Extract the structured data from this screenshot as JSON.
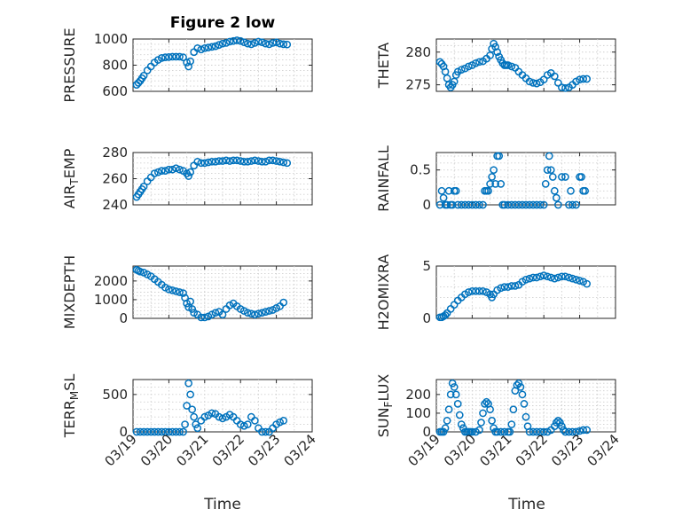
{
  "figure": {
    "title": "Figure 2 low",
    "date_ticks": [
      "03/19",
      "03/20",
      "03/21",
      "03/22",
      "03/23",
      "03/24"
    ],
    "xlabel": "Time"
  },
  "colors": {
    "marker": "#0072BD",
    "axis": "#262626",
    "grid": "#cfcfcf"
  },
  "chart_data": [
    {
      "type": "scatter",
      "name": "PRESSURE",
      "ylabel": "PRESSURE",
      "title": "Figure 2 low",
      "xlim": [
        "03/19",
        "03/24"
      ],
      "ylim": [
        600,
        1000
      ],
      "yticks": [
        600,
        800,
        1000
      ],
      "ytick_labels": [
        "600",
        "800",
        "1000"
      ],
      "xticks": [],
      "grid": true,
      "x": [
        0.1,
        0.15,
        0.2,
        0.25,
        0.3,
        0.4,
        0.5,
        0.6,
        0.7,
        0.8,
        0.9,
        1.0,
        1.1,
        1.2,
        1.3,
        1.4,
        1.5,
        1.55,
        1.6,
        1.7,
        1.8,
        1.9,
        2.0,
        2.1,
        2.2,
        2.3,
        2.4,
        2.5,
        2.6,
        2.7,
        2.8,
        2.9,
        3.0,
        3.1,
        3.2,
        3.3,
        3.4,
        3.5,
        3.6,
        3.7,
        3.8,
        3.9,
        4.0,
        4.1,
        4.2,
        4.3
      ],
      "y": [
        650,
        665,
        680,
        700,
        720,
        760,
        790,
        820,
        840,
        855,
        860,
        862,
        865,
        865,
        865,
        860,
        820,
        790,
        830,
        900,
        930,
        920,
        930,
        935,
        940,
        945,
        955,
        965,
        970,
        980,
        985,
        990,
        985,
        975,
        965,
        960,
        970,
        980,
        975,
        965,
        960,
        970,
        975,
        965,
        960,
        958
      ]
    },
    {
      "type": "scatter",
      "name": "THETA",
      "ylabel": "THETA",
      "xlim": [
        "03/19",
        "03/24"
      ],
      "ylim": [
        274,
        282
      ],
      "yticks": [
        275,
        280
      ],
      "ytick_labels": [
        "275",
        "280"
      ],
      "xticks": [],
      "grid": true,
      "x": [
        0.1,
        0.15,
        0.2,
        0.25,
        0.3,
        0.35,
        0.4,
        0.45,
        0.5,
        0.55,
        0.6,
        0.7,
        0.8,
        0.9,
        1.0,
        1.1,
        1.2,
        1.3,
        1.4,
        1.5,
        1.55,
        1.6,
        1.65,
        1.7,
        1.75,
        1.8,
        1.85,
        1.9,
        1.95,
        2.0,
        2.1,
        2.2,
        2.3,
        2.4,
        2.5,
        2.6,
        2.7,
        2.8,
        2.9,
        3.0,
        3.1,
        3.2,
        3.3,
        3.4,
        3.5,
        3.6,
        3.7,
        3.8,
        3.9,
        4.0,
        4.1,
        4.2
      ],
      "y": [
        278.5,
        278.2,
        277.8,
        277.0,
        276.0,
        275.0,
        274.6,
        275.0,
        275.5,
        276.5,
        277.0,
        277.3,
        277.5,
        277.8,
        278.0,
        278.3,
        278.5,
        278.6,
        279.0,
        279.5,
        280.5,
        281.3,
        280.8,
        280.0,
        279.3,
        278.8,
        278.3,
        278.0,
        278.0,
        278.0,
        277.8,
        277.6,
        277.0,
        276.5,
        276.0,
        275.5,
        275.3,
        275.2,
        275.4,
        275.8,
        276.5,
        276.8,
        276.3,
        275.3,
        274.6,
        274.5,
        274.6,
        275.0,
        275.5,
        275.8,
        275.9,
        275.9
      ]
    },
    {
      "type": "scatter",
      "name": "AIR_TEMP",
      "ylabel": "AIR_TEMP",
      "xlim": [
        "03/19",
        "03/24"
      ],
      "ylim": [
        240,
        280
      ],
      "yticks": [
        240,
        260,
        280
      ],
      "ytick_labels": [
        "240",
        "260",
        "280"
      ],
      "xticks": [],
      "grid": true,
      "x": [
        0.1,
        0.15,
        0.2,
        0.25,
        0.3,
        0.4,
        0.5,
        0.6,
        0.7,
        0.8,
        0.9,
        1.0,
        1.1,
        1.2,
        1.3,
        1.4,
        1.5,
        1.55,
        1.6,
        1.7,
        1.8,
        1.9,
        2.0,
        2.1,
        2.2,
        2.3,
        2.4,
        2.5,
        2.6,
        2.7,
        2.8,
        2.9,
        3.0,
        3.1,
        3.2,
        3.3,
        3.4,
        3.5,
        3.6,
        3.7,
        3.8,
        3.9,
        4.0,
        4.1,
        4.2,
        4.3
      ],
      "y": [
        246,
        248,
        250,
        252,
        254,
        258,
        261,
        264,
        265,
        266,
        266,
        267,
        267,
        268,
        267,
        266,
        264,
        262,
        265,
        270,
        273,
        272,
        272,
        272.5,
        273,
        273,
        273.5,
        273.5,
        274,
        273.5,
        274,
        274,
        273.5,
        273,
        273,
        273.5,
        274,
        273.5,
        273,
        273,
        274,
        274,
        273.5,
        273,
        272.5,
        272
      ]
    },
    {
      "type": "scatter",
      "name": "RAINFALL",
      "ylabel": "RAINFALL",
      "xlim": [
        "03/19",
        "03/24"
      ],
      "ylim": [
        0,
        0.75
      ],
      "yticks": [
        0,
        0.5
      ],
      "ytick_labels": [
        "0",
        "0.5"
      ],
      "xticks": [],
      "grid": true,
      "x": [
        0.1,
        0.15,
        0.2,
        0.25,
        0.3,
        0.35,
        0.4,
        0.45,
        0.5,
        0.55,
        0.6,
        0.7,
        0.8,
        0.9,
        1.0,
        1.1,
        1.2,
        1.3,
        1.35,
        1.4,
        1.45,
        1.5,
        1.55,
        1.6,
        1.65,
        1.7,
        1.75,
        1.8,
        1.85,
        1.9,
        2.0,
        2.1,
        2.2,
        2.3,
        2.4,
        2.5,
        2.6,
        2.7,
        2.8,
        2.9,
        3.0,
        3.05,
        3.1,
        3.15,
        3.2,
        3.25,
        3.3,
        3.35,
        3.4,
        3.5,
        3.6,
        3.7,
        3.75,
        3.8,
        3.9,
        4.0,
        4.05,
        4.1,
        4.15
      ],
      "y": [
        0,
        0.2,
        0.1,
        0,
        0,
        0.2,
        0,
        0,
        0.2,
        0.2,
        0,
        0,
        0,
        0,
        0,
        0,
        0,
        0,
        0.2,
        0.2,
        0.2,
        0.3,
        0.4,
        0.5,
        0.3,
        0.7,
        0.7,
        0.3,
        0,
        0,
        0,
        0,
        0,
        0,
        0,
        0,
        0,
        0,
        0,
        0,
        0,
        0.3,
        0.5,
        0.7,
        0.5,
        0.4,
        0.2,
        0.1,
        0,
        0.4,
        0.4,
        0,
        0.2,
        0,
        0,
        0.4,
        0.4,
        0.2,
        0.2
      ]
    },
    {
      "type": "scatter",
      "name": "MIXDEPTH",
      "ylabel": "MIXDEPTH",
      "xlim": [
        "03/19",
        "03/24"
      ],
      "ylim": [
        0,
        2800
      ],
      "yticks": [
        0,
        1000,
        2000
      ],
      "ytick_labels": [
        "0",
        "1000",
        "2000"
      ],
      "xticks": [],
      "grid": true,
      "x": [
        0.1,
        0.15,
        0.2,
        0.3,
        0.4,
        0.5,
        0.6,
        0.7,
        0.8,
        0.9,
        1.0,
        1.1,
        1.2,
        1.3,
        1.4,
        1.45,
        1.5,
        1.55,
        1.6,
        1.65,
        1.7,
        1.8,
        1.9,
        2.0,
        2.1,
        2.2,
        2.3,
        2.4,
        2.5,
        2.6,
        2.7,
        2.8,
        2.9,
        3.0,
        3.1,
        3.2,
        3.3,
        3.4,
        3.5,
        3.6,
        3.7,
        3.8,
        3.9,
        4.0,
        4.1,
        4.2
      ],
      "y": [
        2600,
        2550,
        2500,
        2450,
        2350,
        2250,
        2100,
        1950,
        1800,
        1650,
        1550,
        1500,
        1450,
        1400,
        1350,
        1100,
        800,
        600,
        900,
        500,
        300,
        200,
        50,
        50,
        100,
        200,
        300,
        350,
        200,
        500,
        700,
        800,
        650,
        500,
        400,
        300,
        250,
        200,
        250,
        300,
        350,
        400,
        450,
        550,
        650,
        850
      ]
    },
    {
      "type": "scatter",
      "name": "H2OMIXRA",
      "ylabel": "H2OMIXRA",
      "xlim": [
        "03/19",
        "03/24"
      ],
      "ylim": [
        0,
        5
      ],
      "yticks": [
        0,
        5
      ],
      "ytick_labels": [
        "0",
        "5"
      ],
      "xticks": [],
      "grid": true,
      "x": [
        0.1,
        0.15,
        0.2,
        0.25,
        0.3,
        0.4,
        0.5,
        0.6,
        0.7,
        0.8,
        0.9,
        1.0,
        1.1,
        1.2,
        1.3,
        1.4,
        1.5,
        1.55,
        1.6,
        1.7,
        1.8,
        1.9,
        2.0,
        2.1,
        2.2,
        2.3,
        2.4,
        2.5,
        2.6,
        2.7,
        2.8,
        2.9,
        3.0,
        3.1,
        3.2,
        3.3,
        3.4,
        3.5,
        3.6,
        3.7,
        3.8,
        3.9,
        4.0,
        4.1,
        4.2
      ],
      "y": [
        0.1,
        0.1,
        0.2,
        0.3,
        0.5,
        0.9,
        1.3,
        1.7,
        2.0,
        2.3,
        2.5,
        2.6,
        2.6,
        2.6,
        2.6,
        2.5,
        2.3,
        2.0,
        2.3,
        2.7,
        2.9,
        3.0,
        3.0,
        3.1,
        3.1,
        3.2,
        3.5,
        3.7,
        3.8,
        3.9,
        3.9,
        4.0,
        4.1,
        4.0,
        3.9,
        3.8,
        3.9,
        4.0,
        4.0,
        3.9,
        3.8,
        3.7,
        3.6,
        3.5,
        3.3
      ]
    },
    {
      "type": "scatter",
      "name": "TERR_MSL",
      "ylabel": "TERR_MSL",
      "xlim": [
        "03/19",
        "03/24"
      ],
      "ylim": [
        0,
        700
      ],
      "yticks": [
        0,
        500
      ],
      "ytick_labels": [
        "0",
        "500"
      ],
      "xtick_labels": [
        "03/19",
        "03/20",
        "03/21",
        "03/22",
        "03/23",
        "03/24"
      ],
      "xlabel": "Time",
      "grid": true,
      "x": [
        0.1,
        0.2,
        0.3,
        0.4,
        0.5,
        0.6,
        0.7,
        0.8,
        0.9,
        1.0,
        1.1,
        1.2,
        1.3,
        1.4,
        1.45,
        1.5,
        1.55,
        1.6,
        1.65,
        1.7,
        1.75,
        1.8,
        1.9,
        2.0,
        2.1,
        2.2,
        2.3,
        2.4,
        2.5,
        2.6,
        2.7,
        2.8,
        2.9,
        3.0,
        3.1,
        3.2,
        3.3,
        3.4,
        3.5,
        3.6,
        3.7,
        3.8,
        3.9,
        4.0,
        4.1,
        4.2
      ],
      "y": [
        0,
        0,
        0,
        0,
        0,
        0,
        0,
        0,
        0,
        0,
        0,
        0,
        0,
        0,
        100,
        350,
        650,
        500,
        300,
        200,
        100,
        50,
        150,
        200,
        220,
        250,
        240,
        200,
        180,
        200,
        230,
        200,
        150,
        100,
        80,
        100,
        200,
        150,
        50,
        0,
        0,
        0,
        50,
        100,
        130,
        150
      ]
    },
    {
      "type": "scatter",
      "name": "SUN_FLUX",
      "ylabel": "SUN_FLUX",
      "xlim": [
        "03/19",
        "03/24"
      ],
      "ylim": [
        0,
        280
      ],
      "yticks": [
        0,
        100,
        200
      ],
      "ytick_labels": [
        "0",
        "100",
        "200"
      ],
      "xtick_labels": [
        "03/19",
        "03/20",
        "03/21",
        "03/22",
        "03/23",
        "03/24"
      ],
      "xlabel": "Time",
      "grid": true,
      "x": [
        0.1,
        0.15,
        0.2,
        0.25,
        0.3,
        0.35,
        0.4,
        0.45,
        0.5,
        0.55,
        0.6,
        0.65,
        0.7,
        0.75,
        0.8,
        0.85,
        0.9,
        0.95,
        1.0,
        1.1,
        1.2,
        1.25,
        1.3,
        1.35,
        1.4,
        1.45,
        1.5,
        1.55,
        1.6,
        1.65,
        1.7,
        1.8,
        1.9,
        2.0,
        2.05,
        2.1,
        2.15,
        2.2,
        2.25,
        2.3,
        2.35,
        2.4,
        2.45,
        2.5,
        2.55,
        2.6,
        2.7,
        2.8,
        2.9,
        3.0,
        3.1,
        3.2,
        3.3,
        3.35,
        3.4,
        3.45,
        3.5,
        3.55,
        3.6,
        3.7,
        3.8,
        3.9,
        4.0,
        4.1,
        4.2
      ],
      "y": [
        0,
        0,
        0,
        20,
        60,
        120,
        200,
        260,
        240,
        200,
        150,
        90,
        40,
        20,
        0,
        0,
        0,
        0,
        0,
        0,
        10,
        50,
        100,
        150,
        160,
        150,
        120,
        60,
        20,
        0,
        0,
        0,
        0,
        0,
        0,
        40,
        120,
        220,
        250,
        260,
        240,
        200,
        150,
        80,
        30,
        0,
        0,
        0,
        0,
        0,
        0,
        10,
        30,
        50,
        60,
        50,
        30,
        10,
        0,
        0,
        0,
        0,
        5,
        10,
        10
      ]
    }
  ]
}
